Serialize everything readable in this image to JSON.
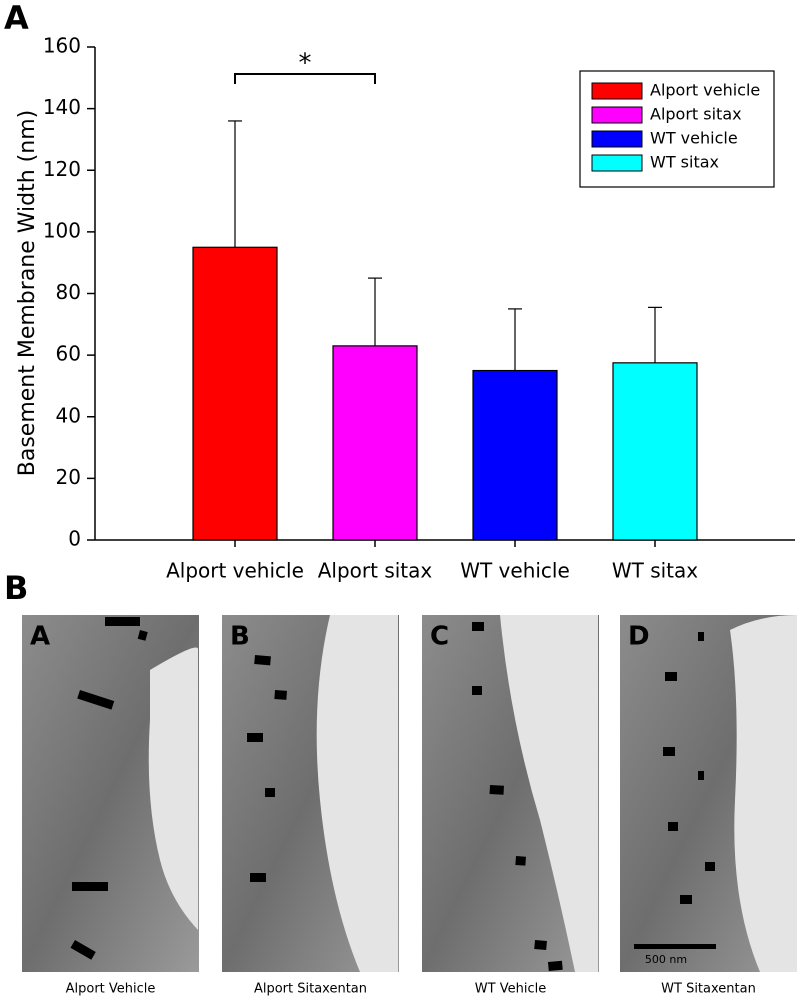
{
  "figure_labels": [
    "A",
    "B"
  ],
  "chart_data": {
    "type": "bar",
    "y_label": "Basement Membrane Width (nm)",
    "categories": [
      "Alport vehicle",
      "Alport sitax",
      "WT vehicle",
      "WT sitax"
    ],
    "values": [
      95,
      63,
      55,
      57.5
    ],
    "errors": [
      41,
      22,
      20,
      18
    ],
    "colors": [
      "#ff0000",
      "#ff00ff",
      "#0000ff",
      "#00ffff"
    ],
    "ylim": [
      0,
      160
    ],
    "yticks": [
      0,
      20,
      40,
      60,
      80,
      100,
      120,
      140,
      160
    ],
    "legend": "upper right",
    "annotations": [
      {
        "text": "*"
      }
    ]
  },
  "micrographs": {
    "panels": [
      {
        "label": "A",
        "caption": "Alport Vehicle"
      },
      {
        "label": "B",
        "caption": "Alport Sitaxentan"
      },
      {
        "label": "C",
        "caption": "WT Vehicle"
      },
      {
        "label": "D",
        "caption": "WT Sitaxentan"
      }
    ],
    "scale_bar": "500 nm"
  }
}
